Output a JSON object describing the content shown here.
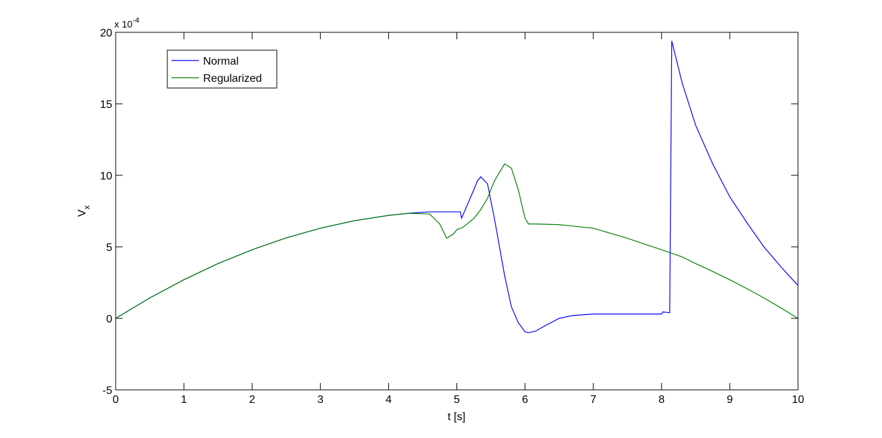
{
  "chart_data": {
    "type": "line",
    "x_label": "t [s]",
    "y_label": "V",
    "y_label_subscript": "x",
    "y_exponent_base": "x 10",
    "y_exponent": "-4",
    "x": [
      0,
      0.5,
      1,
      1.5,
      2,
      2.5,
      3,
      3.5,
      4,
      4.3,
      4.6,
      4.75,
      4.85,
      4.95,
      5.0,
      5.05,
      5.07,
      5.15,
      5.25,
      5.3,
      5.35,
      5.45,
      5.55,
      5.7,
      5.8,
      5.9,
      6.0,
      6.05,
      6.15,
      6.3,
      6.5,
      6.7,
      7,
      7.5,
      8,
      8.02,
      8.12,
      8.15,
      8.3,
      8.5,
      8.75,
      9,
      9.25,
      9.5,
      9.75,
      10
    ],
    "series": [
      {
        "name": "Normal",
        "color": "#0000ff",
        "values": [
          0,
          1.43,
          2.7,
          3.83,
          4.8,
          5.63,
          6.3,
          6.83,
          7.2,
          7.35,
          7.45,
          7.45,
          7.45,
          7.45,
          7.45,
          7.45,
          7.0,
          7.9,
          9.0,
          9.6,
          9.9,
          9.4,
          7.0,
          3.0,
          0.8,
          -0.3,
          -0.95,
          -1.0,
          -0.9,
          -0.5,
          0,
          0.2,
          0.3,
          0.3,
          0.3,
          0.45,
          0.4,
          19.4,
          16.5,
          13.5,
          10.8,
          8.5,
          6.7,
          5.0,
          3.6,
          2.3
        ]
      },
      {
        "name": "Regularized",
        "color": "#007f00",
        "values": [
          0,
          1.43,
          2.7,
          3.83,
          4.8,
          5.63,
          6.3,
          6.83,
          7.2,
          7.35,
          7.3,
          6.6,
          5.6,
          5.9,
          6.2,
          6.3,
          6.3,
          6.6,
          7.0,
          7.3,
          7.6,
          8.4,
          9.6,
          10.8,
          10.5,
          9.0,
          7.0,
          6.6,
          6.6,
          6.58,
          6.55,
          6.45,
          6.3,
          5.6,
          4.8,
          4.76,
          4.6,
          4.55,
          4.3,
          3.83,
          3.28,
          2.7,
          2.08,
          1.43,
          0.73,
          0
        ]
      }
    ],
    "xlim": [
      0,
      10
    ],
    "xticks": [
      0,
      1,
      2,
      3,
      4,
      5,
      6,
      7,
      8,
      9,
      10
    ],
    "ylim": [
      -5,
      20
    ],
    "yticks": [
      -5,
      0,
      5,
      10,
      15,
      20
    ],
    "legend": "northwest"
  }
}
